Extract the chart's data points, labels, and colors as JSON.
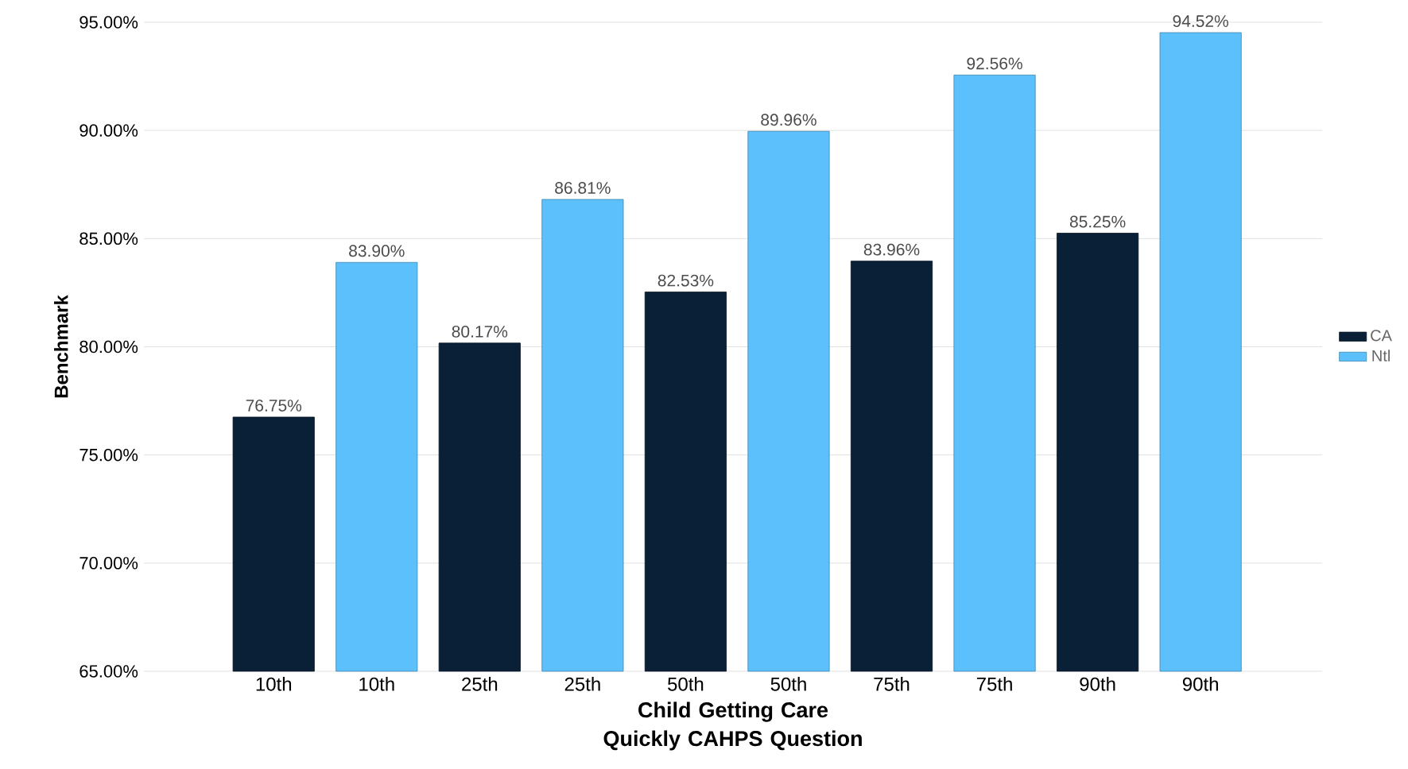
{
  "chart_data": {
    "type": "bar",
    "xlabel": "Child Getting Care Quickly CAHPS Question",
    "ylabel": "Benchmark",
    "categories": [
      "10th",
      "10th",
      "25th",
      "25th",
      "50th",
      "50th",
      "75th",
      "75th",
      "90th",
      "90th"
    ],
    "series": [
      {
        "name": "CA",
        "color": "#0a2036",
        "values": [
          76.75,
          null,
          80.17,
          null,
          82.53,
          null,
          83.96,
          null,
          85.25,
          null
        ],
        "value_labels": [
          "76.75%",
          null,
          "80.17%",
          null,
          "82.53%",
          null,
          "83.96%",
          null,
          "85.25%",
          null
        ]
      },
      {
        "name": "Ntl",
        "color": "#5bc0fb",
        "values": [
          null,
          83.9,
          null,
          86.81,
          null,
          89.96,
          null,
          92.56,
          null,
          94.52
        ],
        "value_labels": [
          null,
          "83.90%",
          null,
          "86.81%",
          null,
          "89.96%",
          null,
          "92.56%",
          null,
          "94.52%"
        ]
      }
    ],
    "ylim": [
      65,
      95
    ],
    "yticks": [
      {
        "value": 65,
        "label": "65.00%"
      },
      {
        "value": 70,
        "label": "70.00%"
      },
      {
        "value": 75,
        "label": "75.00%"
      },
      {
        "value": 80,
        "label": "80.00%"
      },
      {
        "value": 85,
        "label": "85.00%"
      },
      {
        "value": 90,
        "label": "90.00%"
      },
      {
        "value": 95,
        "label": "95.00%"
      }
    ],
    "grid": "y",
    "legend": "right"
  }
}
